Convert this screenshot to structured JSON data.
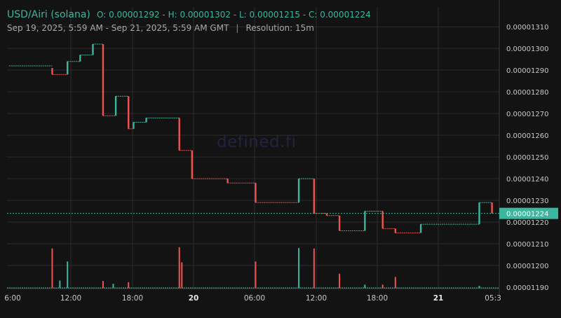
{
  "header": {
    "pair": "USD/Airi (solana)",
    "ohlc": "O: 0.00001292 - H: 0.00001302 - L: 0.00001215 - C: 0.00001224",
    "range": "Sep 19, 2025, 5:59 AM - Sep 21, 2025, 5:59 AM GMT",
    "separator": "|",
    "resolution": "Resolution: 15m"
  },
  "watermark": "defined.fi",
  "colors": {
    "background": "#131313",
    "grid": "#2c2c2c",
    "up": "#3bb79f",
    "down": "#ef5350",
    "text": "#c8c8c8"
  },
  "chart_data": {
    "type": "candlestick",
    "price_unit": "USD",
    "ylim": [
      1.19e-05,
      1.312e-05
    ],
    "y_ticks": [
      "0.00001310",
      "0.00001300",
      "0.00001290",
      "0.00001280",
      "0.00001270",
      "0.00001260",
      "0.00001250",
      "0.00001240",
      "0.00001230",
      "0.00001220",
      "0.00001210",
      "0.00001200",
      "0.00001190"
    ],
    "x_ticks": [
      "6:00",
      "12:00",
      "18:00",
      "20",
      "06:00",
      "12:00",
      "18:00",
      "21",
      "05:3"
    ],
    "bold_x_ticks": [
      "20",
      "21"
    ],
    "last_price_label": "0.00001224",
    "last_price": 1.224e-05,
    "grid": true,
    "candles": [
      {
        "t": "Sep 19 06:00",
        "o": 1.292e-05,
        "c": 1.292e-05
      },
      {
        "t": "Sep 19 10:15",
        "o": 1.291e-05,
        "c": 1.288e-05
      },
      {
        "t": "Sep 19 11:45",
        "o": 1.288e-05,
        "c": 1.294e-05
      },
      {
        "t": "Sep 19 13:00",
        "o": 1.294e-05,
        "c": 1.297e-05
      },
      {
        "t": "Sep 19 14:15",
        "o": 1.297e-05,
        "c": 1.302e-05
      },
      {
        "t": "Sep 19 15:15",
        "o": 1.302e-05,
        "c": 1.269e-05
      },
      {
        "t": "Sep 19 16:30",
        "o": 1.269e-05,
        "c": 1.278e-05
      },
      {
        "t": "Sep 19 17:45",
        "o": 1.278e-05,
        "c": 1.263e-05
      },
      {
        "t": "Sep 19 18:15",
        "o": 1.263e-05,
        "c": 1.266e-05
      },
      {
        "t": "Sep 19 19:30",
        "o": 1.266e-05,
        "c": 1.268e-05
      },
      {
        "t": "Sep 19 22:45",
        "o": 1.268e-05,
        "c": 1.253e-05
      },
      {
        "t": "Sep 20 00:00",
        "o": 1.253e-05,
        "c": 1.24e-05
      },
      {
        "t": "Sep 20 03:30",
        "o": 1.24e-05,
        "c": 1.238e-05
      },
      {
        "t": "Sep 20 06:15",
        "o": 1.238e-05,
        "c": 1.229e-05
      },
      {
        "t": "Sep 20 10:30",
        "o": 1.229e-05,
        "c": 1.24e-05
      },
      {
        "t": "Sep 20 12:00",
        "o": 1.24e-05,
        "c": 1.224e-05
      },
      {
        "t": "Sep 20 13:15",
        "o": 1.224e-05,
        "c": 1.223e-05
      },
      {
        "t": "Sep 20 14:30",
        "o": 1.223e-05,
        "c": 1.216e-05
      },
      {
        "t": "Sep 20 17:00",
        "o": 1.216e-05,
        "c": 1.225e-05
      },
      {
        "t": "Sep 20 18:45",
        "o": 1.225e-05,
        "c": 1.217e-05
      },
      {
        "t": "Sep 20 20:00",
        "o": 1.217e-05,
        "c": 1.215e-05
      },
      {
        "t": "Sep 20 22:30",
        "o": 1.215e-05,
        "c": 1.219e-05
      },
      {
        "t": "Sep 21 04:15",
        "o": 1.219e-05,
        "c": 1.229e-05
      },
      {
        "t": "Sep 21 05:30",
        "o": 1.229e-05,
        "c": 1.224e-05
      }
    ],
    "volume_spikes": [
      {
        "t": "Sep 19 10:15",
        "dir": "down",
        "rel": 0.97
      },
      {
        "t": "Sep 19 11:00",
        "dir": "up",
        "rel": 0.18
      },
      {
        "t": "Sep 19 11:45",
        "dir": "up",
        "rel": 0.65
      },
      {
        "t": "Sep 19 15:15",
        "dir": "down",
        "rel": 0.17
      },
      {
        "t": "Sep 19 16:15",
        "dir": "up",
        "rel": 0.1
      },
      {
        "t": "Sep 19 17:45",
        "dir": "down",
        "rel": 0.14
      },
      {
        "t": "Sep 19 22:45",
        "dir": "down",
        "rel": 1.0
      },
      {
        "t": "Sep 19 23:00",
        "dir": "down",
        "rel": 0.63
      },
      {
        "t": "Sep 20 06:15",
        "dir": "down",
        "rel": 0.65
      },
      {
        "t": "Sep 20 10:30",
        "dir": "up",
        "rel": 0.98
      },
      {
        "t": "Sep 20 12:00",
        "dir": "down",
        "rel": 0.97
      },
      {
        "t": "Sep 20 14:30",
        "dir": "down",
        "rel": 0.35
      },
      {
        "t": "Sep 20 17:00",
        "dir": "up",
        "rel": 0.08
      },
      {
        "t": "Sep 20 18:45",
        "dir": "down",
        "rel": 0.08
      },
      {
        "t": "Sep 20 20:00",
        "dir": "down",
        "rel": 0.27
      },
      {
        "t": "Sep 21 04:15",
        "dir": "up",
        "rel": 0.05
      }
    ]
  }
}
